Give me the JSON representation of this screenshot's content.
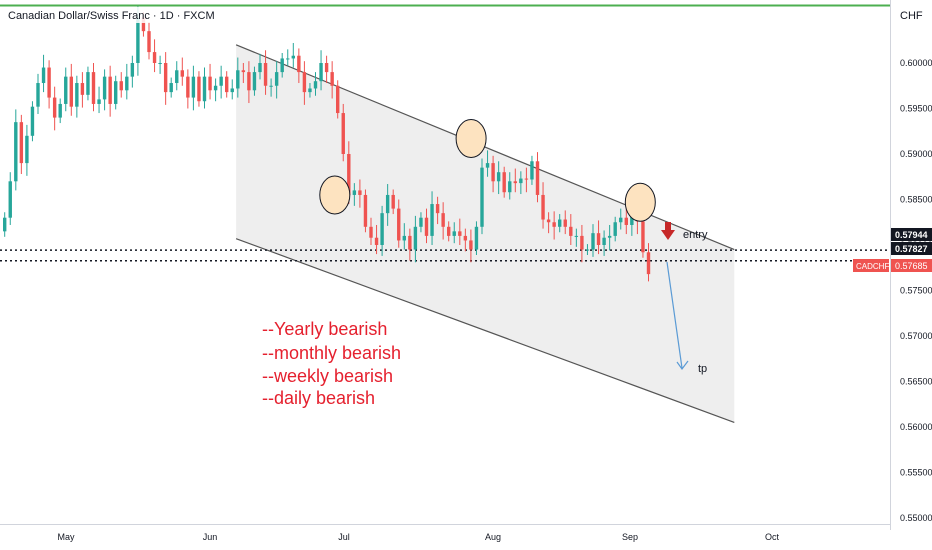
{
  "header": {
    "title": "Canadian Dollar/Swiss Franc · 1D · FXCM"
  },
  "price_axis": {
    "currency": "CHF"
  },
  "colors": {
    "up": "#26a69a",
    "down": "#ef5350",
    "channel_fill": "#eeeeee",
    "channel_line": "#555555",
    "accent_green": "#4caf50",
    "annotation_red": "#e5202e",
    "circle_fill": "#fde3c0",
    "arrow_blue": "#5b9bd5"
  },
  "chart_data": {
    "type": "candlestick",
    "symbol": "CADCHF",
    "y_ticks": [
      0.6,
      0.595,
      0.59,
      0.585,
      0.58,
      0.575,
      0.57,
      0.565,
      0.56,
      0.555,
      0.55
    ],
    "y_tick_labels": [
      "0.60000",
      "0.59500",
      "0.59000",
      "0.58500",
      "0.58000",
      "0.57500",
      "0.57000",
      "0.56500",
      "0.56000",
      "0.55500",
      "0.55000"
    ],
    "ylim": [
      0.5475,
      0.6075
    ],
    "x_labels": [
      "May",
      "Jun",
      "Jul",
      "Aug",
      "Sep",
      "Oct"
    ],
    "closes": [
      0.583,
      0.587,
      0.5935,
      0.589,
      0.592,
      0.5952,
      0.5978,
      0.5995,
      0.5962,
      0.594,
      0.5955,
      0.5985,
      0.5952,
      0.5978,
      0.5965,
      0.599,
      0.5955,
      0.596,
      0.5985,
      0.5955,
      0.598,
      0.597,
      0.5985,
      0.6,
      0.605,
      0.6035,
      0.6012,
      0.6,
      0.6,
      0.5968,
      0.5978,
      0.5992,
      0.5985,
      0.5962,
      0.5985,
      0.5958,
      0.5985,
      0.597,
      0.5975,
      0.5985,
      0.5968,
      0.5972,
      0.5992,
      0.599,
      0.597,
      0.599,
      0.6,
      0.5975,
      0.5975,
      0.599,
      0.6005,
      0.6005,
      0.6008,
      0.599,
      0.5968,
      0.5972,
      0.598,
      0.6,
      0.599,
      0.5975,
      0.5945,
      0.59,
      0.5855,
      0.586,
      0.5855,
      0.582,
      0.5808,
      0.58,
      0.5835,
      0.5855,
      0.584,
      0.5805,
      0.581,
      0.5795,
      0.582,
      0.583,
      0.581,
      0.5845,
      0.5835,
      0.582,
      0.581,
      0.5815,
      0.581,
      0.5805,
      0.5795,
      0.582,
      0.5885,
      0.589,
      0.587,
      0.588,
      0.5858,
      0.587,
      0.5868,
      0.5873,
      0.5872,
      0.5892,
      0.5855,
      0.5828,
      0.5825,
      0.582,
      0.5828,
      0.582,
      0.581,
      0.581,
      0.5795,
      0.5795,
      0.5813,
      0.58,
      0.5808,
      0.581,
      0.5825,
      0.583,
      0.5822,
      0.5832,
      0.5826,
      0.5792,
      0.5768
    ],
    "support_levels": [
      0.57944,
      0.57827
    ],
    "price_labels": [
      "0.57944",
      "0.57827",
      "0.57685"
    ],
    "last_price": 0.57685,
    "channel": {
      "upper": [
        {
          "x": "2024-06-12",
          "y": 0.602
        },
        {
          "x": "2024-09-26",
          "y": 0.5795
        }
      ],
      "lower": [
        {
          "x": "2024-06-12",
          "y": 0.5807
        },
        {
          "x": "2024-09-26",
          "y": 0.5605
        }
      ]
    },
    "touch_points": [
      {
        "x": "2024-07-03",
        "y": 0.5855
      },
      {
        "x": "2024-08-01",
        "y": 0.5917
      },
      {
        "x": "2024-09-06",
        "y": 0.5847
      }
    ],
    "annotations": {
      "entry": "entry",
      "tp": "tp"
    },
    "notes": [
      "--Yearly bearish",
      "--monthly bearish",
      "--weekly bearish",
      "--daily bearish"
    ]
  }
}
